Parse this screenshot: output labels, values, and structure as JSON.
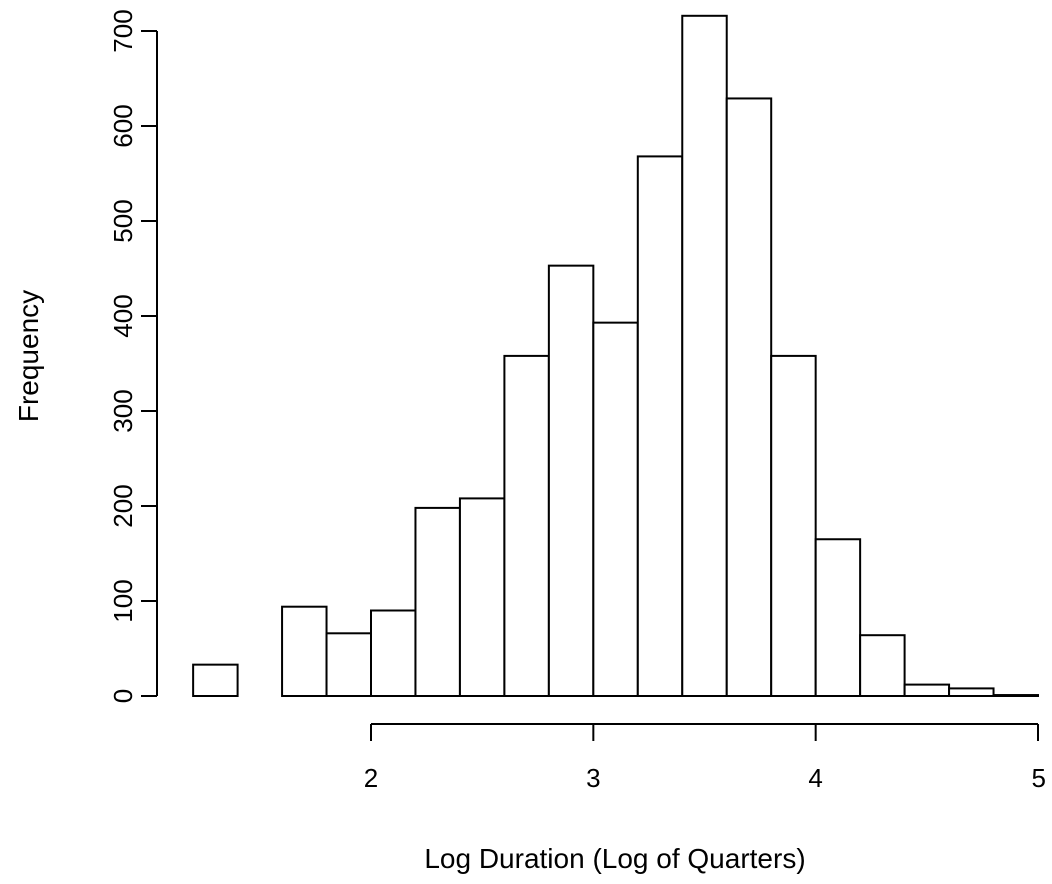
{
  "chart_data": {
    "type": "bar",
    "histogram": true,
    "title": "",
    "xlabel": "Log Duration (Log of Quarters)",
    "ylabel": "Frequency",
    "bin_edges": [
      1.2,
      1.4,
      1.6,
      1.8,
      2.0,
      2.2,
      2.4,
      2.6,
      2.8,
      3.0,
      3.2,
      3.4,
      3.6,
      3.8,
      4.0,
      4.2,
      4.4,
      4.6,
      4.8,
      5.0
    ],
    "values": [
      33,
      0,
      94,
      66,
      90,
      198,
      208,
      358,
      453,
      393,
      568,
      716,
      629,
      358,
      165,
      64,
      12,
      8,
      1
    ],
    "xticks": [
      2,
      3,
      4,
      5
    ],
    "xticklabels": [
      "2",
      "3",
      "4",
      "5"
    ],
    "yticks": [
      0,
      100,
      200,
      300,
      400,
      500,
      600,
      700
    ],
    "yticklabels": [
      "0",
      "100",
      "200",
      "300",
      "400",
      "500",
      "600",
      "700"
    ],
    "xlim": [
      1.2,
      5.0
    ],
    "ylim": [
      0,
      720
    ],
    "grid": false,
    "legend": "none"
  }
}
